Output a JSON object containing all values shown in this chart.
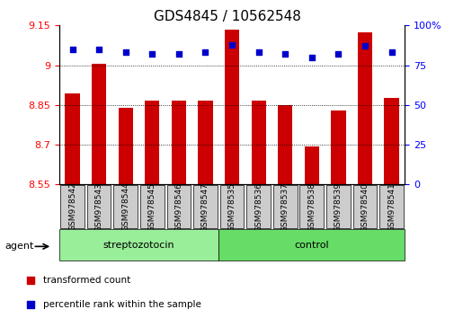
{
  "title": "GDS4845 / 10562548",
  "samples": [
    "GSM978542",
    "GSM978543",
    "GSM978544",
    "GSM978545",
    "GSM978546",
    "GSM978547",
    "GSM978535",
    "GSM978536",
    "GSM978537",
    "GSM978538",
    "GSM978539",
    "GSM978540",
    "GSM978541"
  ],
  "bar_values": [
    8.895,
    9.005,
    8.84,
    8.865,
    8.865,
    8.868,
    9.135,
    8.865,
    8.848,
    8.693,
    8.828,
    9.125,
    8.878
  ],
  "percentile_values": [
    85,
    85,
    83,
    82,
    82,
    83,
    88,
    83,
    82,
    80,
    82,
    87,
    83
  ],
  "ymin": 8.55,
  "ymax": 9.15,
  "yticks": [
    8.55,
    8.7,
    8.85,
    9.0,
    9.15
  ],
  "ytick_labels": [
    "8.55",
    "8.7",
    "8.85",
    "9",
    "9.15"
  ],
  "right_yticks": [
    0,
    25,
    50,
    75,
    100
  ],
  "right_ytick_labels": [
    "0",
    "25",
    "50",
    "75",
    "100%"
  ],
  "grid_vals": [
    8.7,
    8.85,
    9.0
  ],
  "group1_label": "streptozotocin",
  "group2_label": "control",
  "group1_count": 6,
  "group2_count": 7,
  "agent_label": "agent",
  "bar_color": "#cc0000",
  "dot_color": "#0000cc",
  "bar_width": 0.55,
  "group1_bg": "#99ee99",
  "group2_bg": "#66dd66",
  "tick_label_bg": "#cccccc",
  "legend_red_label": "transformed count",
  "legend_blue_label": "percentile rank within the sample",
  "title_fontsize": 11,
  "axis_label_fontsize": 8,
  "tick_fontsize": 8
}
